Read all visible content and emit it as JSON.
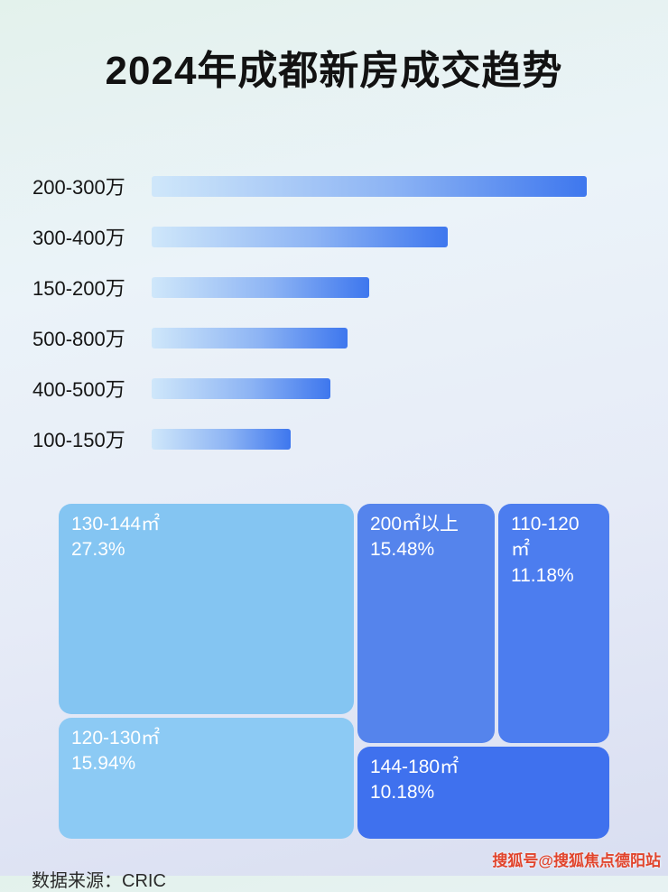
{
  "title": "2024年成都新房成交趋势",
  "footer": {
    "source": "数据来源：CRIC"
  },
  "watermark": "搜狐号@搜狐焦点德阳站",
  "accent_colors": {
    "bar_gradient_start": "#cfe7fa",
    "bar_gradient_end": "#3e77ee",
    "title_color": "#121212",
    "watermark_color": "#e1442c"
  },
  "chart_data": [
    {
      "type": "bar",
      "orientation": "horizontal",
      "title": "2024年成都新房成交趋势",
      "categories": [
        "200-300万",
        "300-400万",
        "150-200万",
        "500-800万",
        "400-500万",
        "100-150万"
      ],
      "relative_lengths": [
        1.0,
        0.68,
        0.5,
        0.45,
        0.41,
        0.32
      ],
      "axis_labels_shown": false,
      "grid": false,
      "legend": false
    },
    {
      "type": "treemap",
      "items": [
        {
          "label": "130-144㎡",
          "percent": "27.3%",
          "value": 27.3,
          "color": "#84c5f2"
        },
        {
          "label": "120-130㎡",
          "percent": "15.94%",
          "value": 15.94,
          "color": "#8ccaf4"
        },
        {
          "label": "200㎡以上",
          "percent": "15.48%",
          "value": 15.48,
          "color": "#5584ec"
        },
        {
          "label": "110-120㎡",
          "percent": "11.18%",
          "value": 11.18,
          "color": "#4c7def"
        },
        {
          "label": "144-180㎡",
          "percent": "10.18%",
          "value": 10.18,
          "color": "#3f71ee"
        }
      ]
    }
  ]
}
